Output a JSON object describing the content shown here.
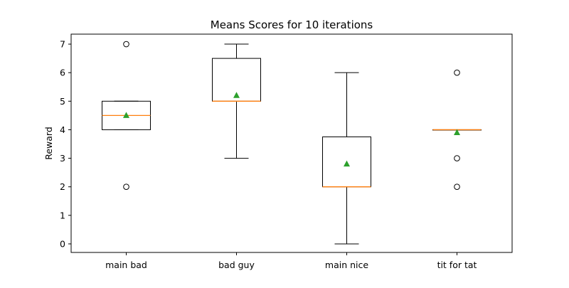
{
  "chart_data": {
    "type": "box",
    "title": "Means Scores for 10 iterations",
    "xlabel": "",
    "ylabel": "Reward",
    "ylim": [
      -0.3,
      7.35
    ],
    "yticks": [
      0,
      1,
      2,
      3,
      4,
      5,
      6,
      7
    ],
    "grid": false,
    "categories": [
      "main bad",
      "bad guy",
      "main nice",
      "tit for tat"
    ],
    "boxes": [
      {
        "category": "main bad",
        "whisker_low": 4,
        "q1": 4,
        "median": 4.5,
        "q3": 5,
        "whisker_high": 5,
        "mean": 4.5,
        "outliers": [
          7,
          2
        ]
      },
      {
        "category": "bad guy",
        "whisker_low": 3,
        "q1": 5,
        "median": 5,
        "q3": 6.5,
        "whisker_high": 7,
        "mean": 5.2,
        "outliers": []
      },
      {
        "category": "main nice",
        "whisker_low": 0,
        "q1": 2,
        "median": 2,
        "q3": 3.75,
        "whisker_high": 6,
        "mean": 2.8,
        "outliers": []
      },
      {
        "category": "tit for tat",
        "whisker_low": 4,
        "q1": 4,
        "median": 4,
        "q3": 4,
        "whisker_high": 4,
        "mean": 3.9,
        "outliers": [
          6,
          3,
          2
        ]
      }
    ],
    "colors": {
      "box": "#000000",
      "median": "#ff7f0e",
      "mean": "#2ca02c",
      "outlier_edge": "#000000"
    }
  }
}
